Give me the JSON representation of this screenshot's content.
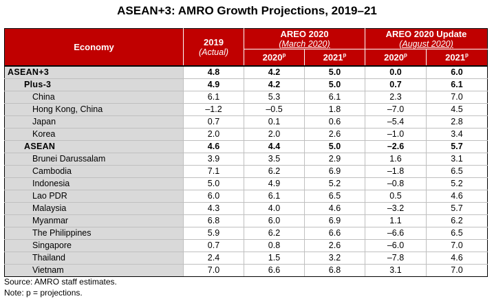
{
  "title": "ASEAN+3: AMRO Growth Projections, 2019–21",
  "header": {
    "economy": "Economy",
    "col_2019": "2019",
    "col_2019_sub": "(Actual)",
    "group_march": "AREO 2020",
    "group_march_sub": "(March 2020)",
    "group_august": "AREO 2020 Update",
    "group_august_sub": "(August 2020)",
    "sub_2020": "2020",
    "sub_2021": "2021",
    "projection_mark": "p"
  },
  "rows": [
    {
      "name": "ASEAN+3",
      "level": 0,
      "bold": true,
      "v2019": "4.8",
      "m2020": "4.2",
      "m2021": "5.0",
      "a2020": "0.0",
      "a2021": "6.0"
    },
    {
      "name": "Plus-3",
      "level": 1,
      "bold": true,
      "v2019": "4.9",
      "m2020": "4.2",
      "m2021": "5.0",
      "a2020": "0.7",
      "a2021": "6.1"
    },
    {
      "name": "China",
      "level": 2,
      "bold": false,
      "v2019": "6.1",
      "m2020": "5.3",
      "m2021": "6.1",
      "a2020": "2.3",
      "a2021": "7.0"
    },
    {
      "name": "Hong Kong, China",
      "level": 2,
      "bold": false,
      "v2019": "–1.2",
      "m2020": "–0.5",
      "m2021": "1.8",
      "a2020": "–7.0",
      "a2021": "4.5"
    },
    {
      "name": "Japan",
      "level": 2,
      "bold": false,
      "v2019": "0.7",
      "m2020": "0.1",
      "m2021": "0.6",
      "a2020": "–5.4",
      "a2021": "2.8"
    },
    {
      "name": "Korea",
      "level": 2,
      "bold": false,
      "v2019": "2.0",
      "m2020": "2.0",
      "m2021": "2.6",
      "a2020": "–1.0",
      "a2021": "3.4"
    },
    {
      "name": "ASEAN",
      "level": 1,
      "bold": true,
      "v2019": "4.6",
      "m2020": "4.4",
      "m2021": "5.0",
      "a2020": "–2.6",
      "a2021": "5.7"
    },
    {
      "name": "Brunei Darussalam",
      "level": 2,
      "bold": false,
      "v2019": "3.9",
      "m2020": "3.5",
      "m2021": "2.9",
      "a2020": "1.6",
      "a2021": "3.1"
    },
    {
      "name": "Cambodia",
      "level": 2,
      "bold": false,
      "v2019": "7.1",
      "m2020": "6.2",
      "m2021": "6.9",
      "a2020": "–1.8",
      "a2021": "6.5"
    },
    {
      "name": "Indonesia",
      "level": 2,
      "bold": false,
      "v2019": "5.0",
      "m2020": "4.9",
      "m2021": "5.2",
      "a2020": "–0.8",
      "a2021": "5.2"
    },
    {
      "name": "Lao PDR",
      "level": 2,
      "bold": false,
      "v2019": "6.0",
      "m2020": "6.1",
      "m2021": "6.5",
      "a2020": "0.5",
      "a2021": "4.6"
    },
    {
      "name": "Malaysia",
      "level": 2,
      "bold": false,
      "v2019": "4.3",
      "m2020": "4.0",
      "m2021": "4.6",
      "a2020": "–3.2",
      "a2021": "5.7"
    },
    {
      "name": "Myanmar",
      "level": 2,
      "bold": false,
      "v2019": "6.8",
      "m2020": "6.0",
      "m2021": "6.9",
      "a2020": "1.1",
      "a2021": "6.2"
    },
    {
      "name": "The Philippines",
      "level": 2,
      "bold": false,
      "v2019": "5.9",
      "m2020": "6.2",
      "m2021": "6.6",
      "a2020": "–6.6",
      "a2021": "6.5"
    },
    {
      "name": "Singapore",
      "level": 2,
      "bold": false,
      "v2019": "0.7",
      "m2020": "0.8",
      "m2021": "2.6",
      "a2020": "–6.0",
      "a2021": "7.0"
    },
    {
      "name": "Thailand",
      "level": 2,
      "bold": false,
      "v2019": "2.4",
      "m2020": "1.5",
      "m2021": "3.2",
      "a2020": "–7.8",
      "a2021": "4.6"
    },
    {
      "name": "Vietnam",
      "level": 2,
      "bold": false,
      "v2019": "7.0",
      "m2020": "6.6",
      "m2021": "6.8",
      "a2020": "3.1",
      "a2021": "7.0"
    }
  ],
  "notes": {
    "source": "Source: AMRO staff estimates.",
    "note": "Note: p = projections."
  },
  "colors": {
    "header_bg": "#c00000",
    "header_text": "#ffffff",
    "name_col_bg": "#d9d9d9"
  }
}
